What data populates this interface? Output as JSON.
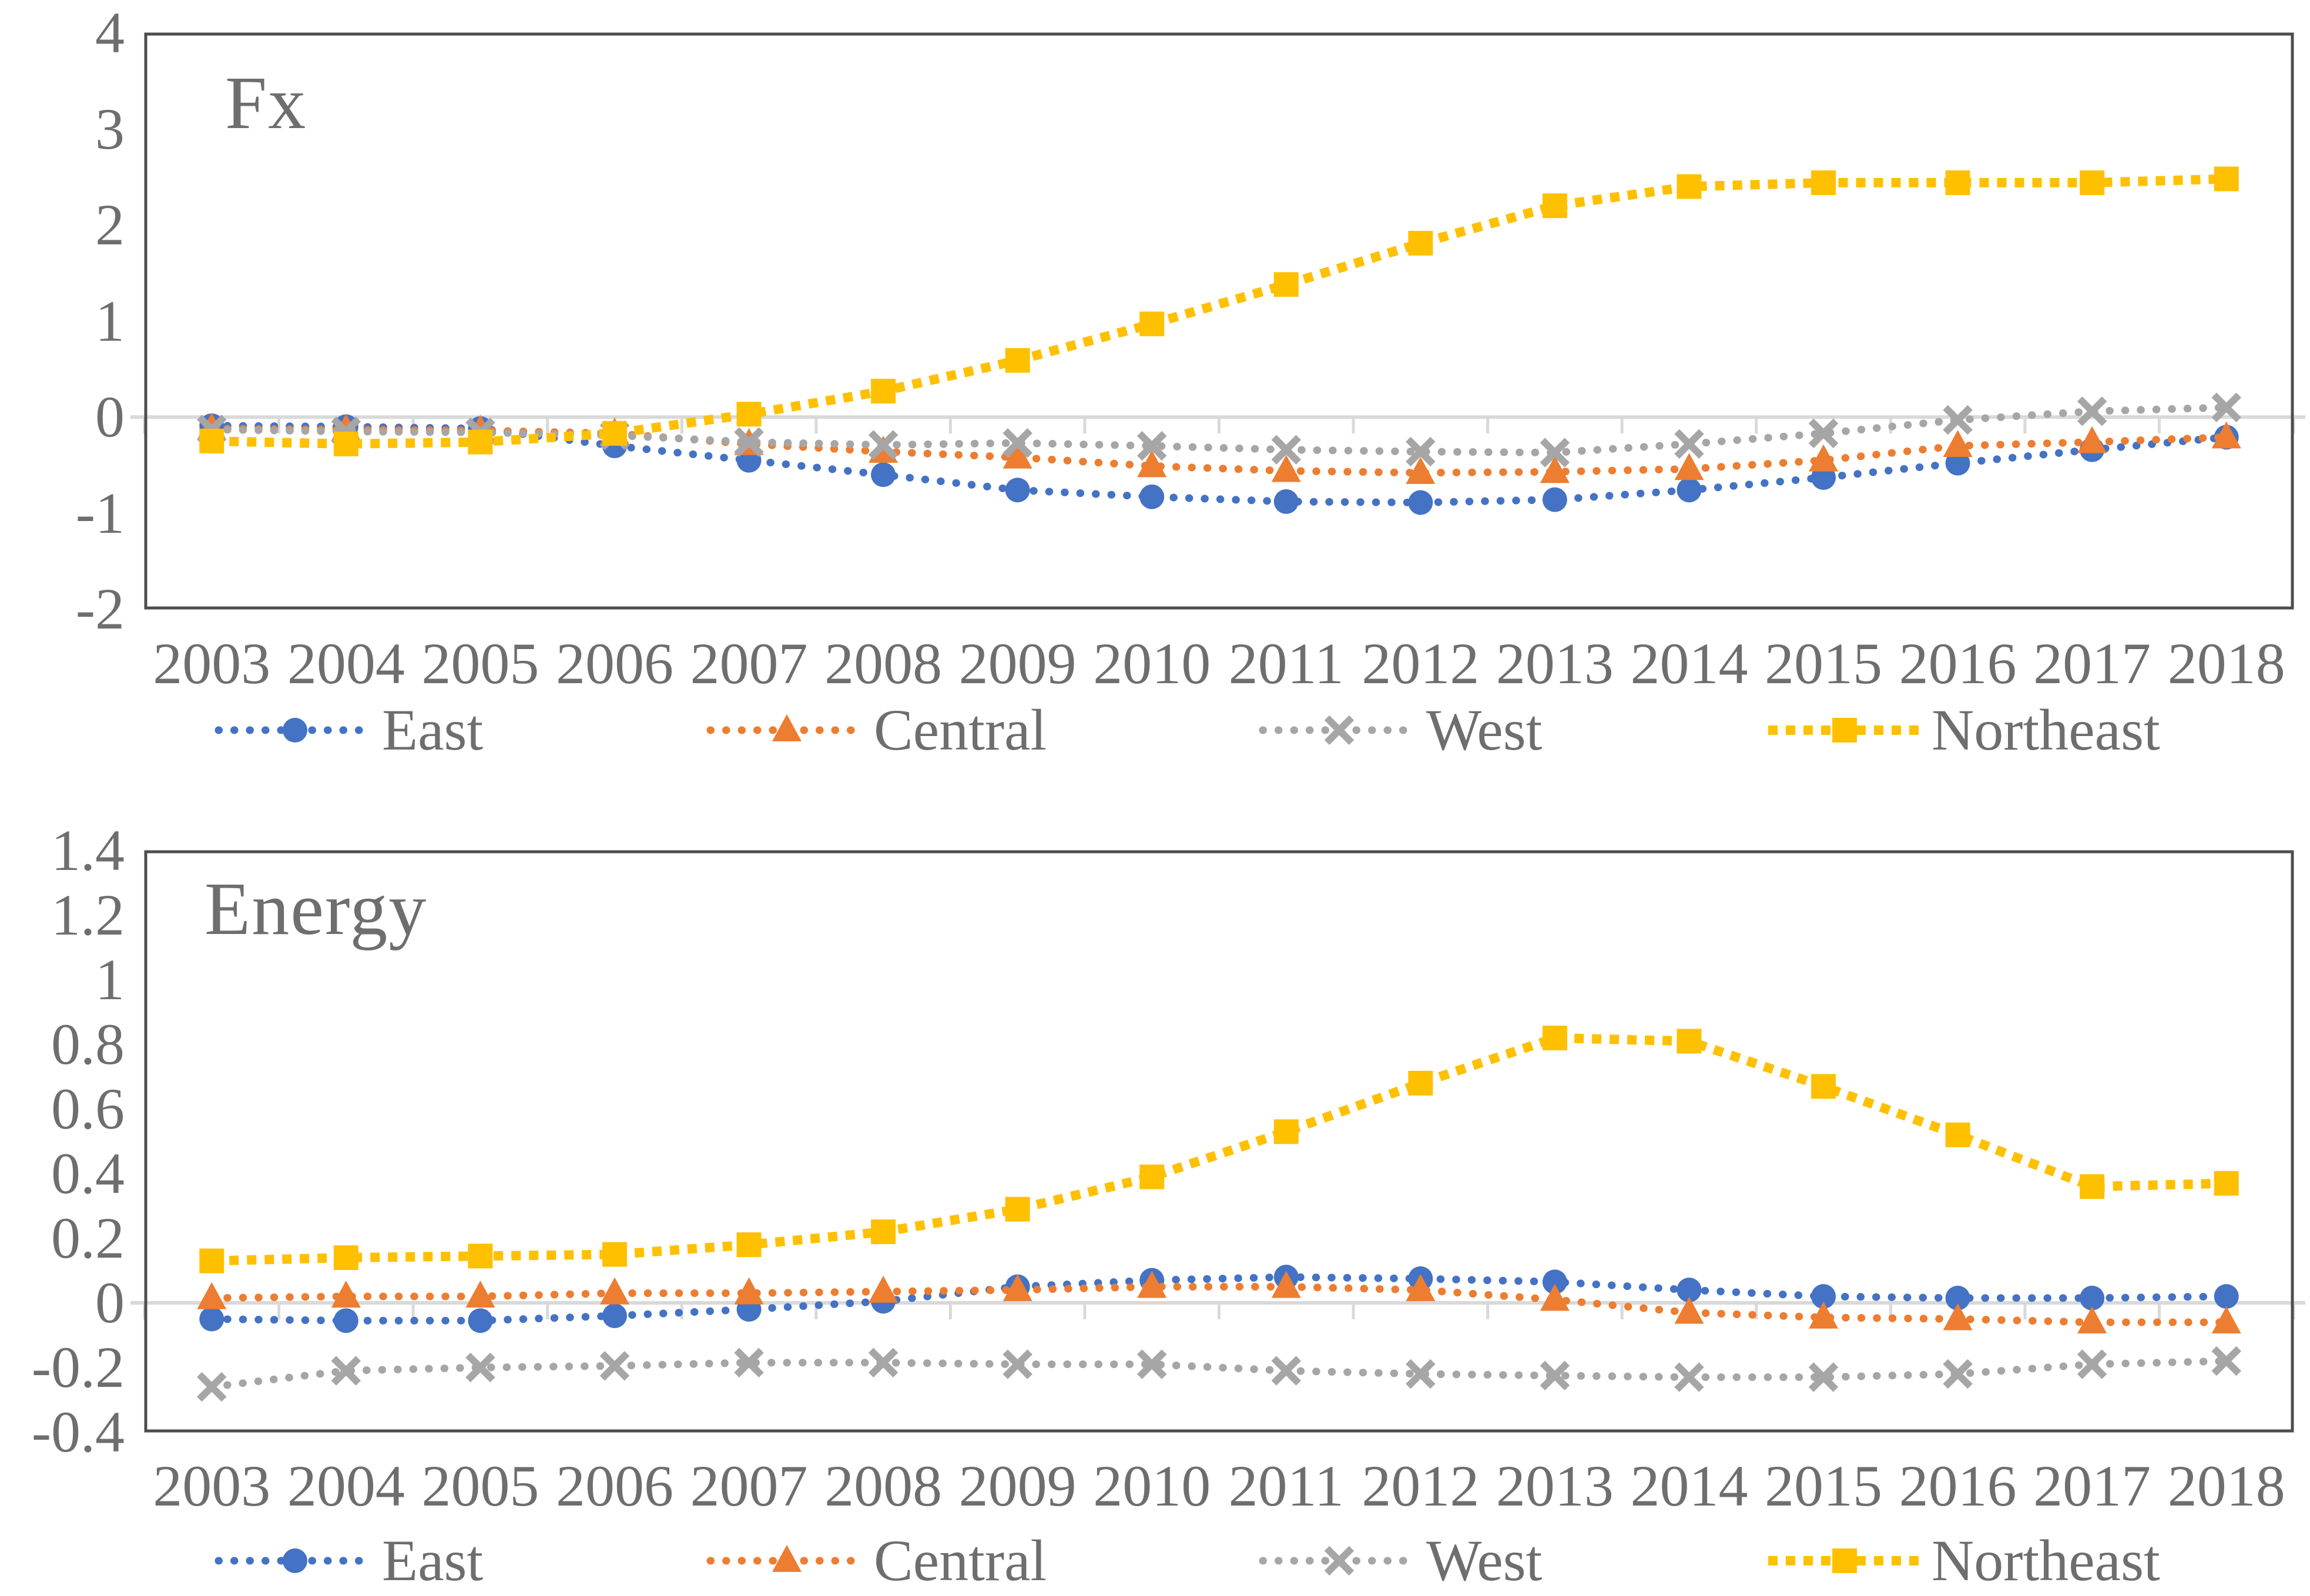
{
  "page": {
    "background": "#ffffff"
  },
  "ui": {
    "axis_text_color": "#6e6e6e",
    "title_color": "#6e6e6e",
    "plot_border_color": "#4d4d4d",
    "zero_axis_color": "#d9d9d9"
  },
  "chart_data": [
    {
      "type": "line",
      "title": "Fx",
      "x": [
        "2003",
        "2004",
        "2005",
        "2006",
        "2007",
        "2008",
        "2009",
        "2010",
        "2011",
        "2012",
        "2013",
        "2014",
        "2015",
        "2016",
        "2017",
        "2018"
      ],
      "ylim": [
        -2,
        4
      ],
      "ytick_labels": [
        "4",
        "3",
        "2",
        "1",
        "0",
        "-1",
        "-2"
      ],
      "grid": "zero-axis-only",
      "legend_position": "bottom",
      "series": [
        {
          "name": "East",
          "color": "#4472C4",
          "marker": "circle",
          "line_style": "round-dot",
          "values": [
            -0.09,
            -0.1,
            -0.12,
            -0.3,
            -0.45,
            -0.6,
            -0.76,
            -0.83,
            -0.88,
            -0.89,
            -0.86,
            -0.76,
            -0.63,
            -0.48,
            -0.34,
            -0.21
          ]
        },
        {
          "name": "Central",
          "color": "#ED7D31",
          "marker": "triangle",
          "line_style": "round-dot",
          "values": [
            -0.12,
            -0.13,
            -0.14,
            -0.17,
            -0.28,
            -0.36,
            -0.42,
            -0.51,
            -0.56,
            -0.58,
            -0.57,
            -0.54,
            -0.45,
            -0.3,
            -0.26,
            -0.21
          ]
        },
        {
          "name": "West",
          "color": "#A6A6A6",
          "marker": "x",
          "line_style": "round-dot",
          "values": [
            -0.13,
            -0.15,
            -0.16,
            -0.19,
            -0.26,
            -0.29,
            -0.27,
            -0.3,
            -0.34,
            -0.36,
            -0.37,
            -0.28,
            -0.17,
            -0.03,
            0.06,
            0.1
          ]
        },
        {
          "name": "Northeast",
          "color": "#FFC000",
          "marker": "square",
          "line_style": "square-dash",
          "values": [
            -0.25,
            -0.28,
            -0.26,
            -0.17,
            0.03,
            0.27,
            0.59,
            0.97,
            1.38,
            1.81,
            2.2,
            2.4,
            2.44,
            2.44,
            2.44,
            2.48
          ]
        }
      ]
    },
    {
      "type": "line",
      "title": "Energy",
      "x": [
        "2003",
        "2004",
        "2005",
        "2006",
        "2007",
        "2008",
        "2009",
        "2010",
        "2011",
        "2012",
        "2013",
        "2014",
        "2015",
        "2016",
        "2017",
        "2018"
      ],
      "ylim": [
        -0.4,
        1.4
      ],
      "ytick_labels": [
        "1.4",
        "1.2",
        "1",
        "0.8",
        "0.6",
        "0.4",
        "0.2",
        "0",
        "-0.2",
        "-0.4"
      ],
      "grid": "zero-axis-only",
      "legend_position": "bottom",
      "series": [
        {
          "name": "East",
          "color": "#4472C4",
          "marker": "circle",
          "line_style": "round-dot",
          "values": [
            -0.05,
            -0.055,
            -0.055,
            -0.04,
            -0.02,
            0.005,
            0.05,
            0.07,
            0.08,
            0.075,
            0.065,
            0.04,
            0.02,
            0.015,
            0.015,
            0.02
          ]
        },
        {
          "name": "Central",
          "color": "#ED7D31",
          "marker": "triangle",
          "line_style": "round-dot",
          "values": [
            0.015,
            0.02,
            0.02,
            0.03,
            0.03,
            0.035,
            0.04,
            0.05,
            0.05,
            0.04,
            0.01,
            -0.03,
            -0.045,
            -0.05,
            -0.06,
            -0.06
          ]
        },
        {
          "name": "West",
          "color": "#A6A6A6",
          "marker": "x",
          "line_style": "round-dot",
          "values": [
            -0.26,
            -0.21,
            -0.2,
            -0.195,
            -0.185,
            -0.185,
            -0.19,
            -0.19,
            -0.21,
            -0.22,
            -0.225,
            -0.23,
            -0.23,
            -0.22,
            -0.19,
            -0.18
          ]
        },
        {
          "name": "Northeast",
          "color": "#FFC000",
          "marker": "square",
          "line_style": "square-dash",
          "values": [
            0.13,
            0.14,
            0.145,
            0.15,
            0.18,
            0.22,
            0.29,
            0.39,
            0.53,
            0.68,
            0.82,
            0.81,
            0.67,
            0.52,
            0.36,
            0.37
          ]
        }
      ]
    }
  ]
}
